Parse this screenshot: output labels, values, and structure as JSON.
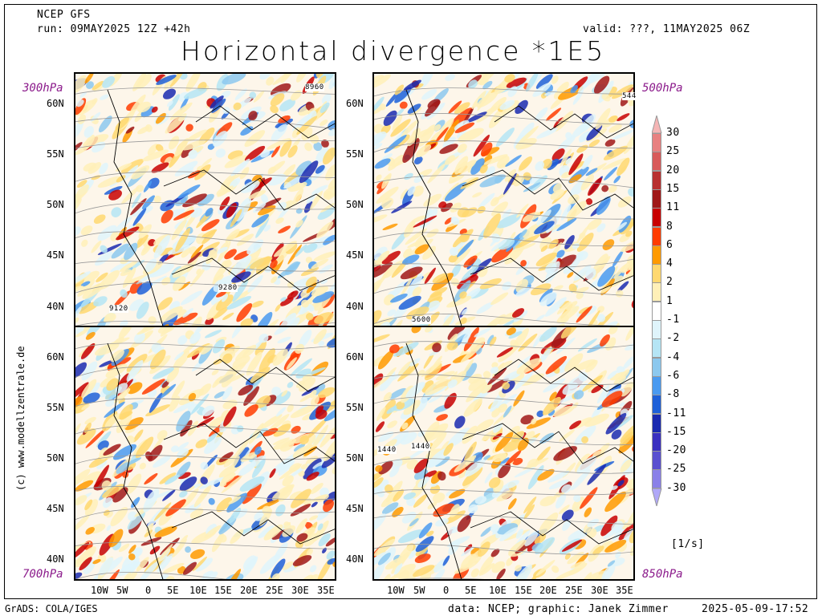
{
  "header": {
    "model": "NCEP GFS",
    "run": "run: 09MAY2025 12Z +42h",
    "valid": "valid: ???, 11MAY2025 06Z",
    "title": "Horizontal divergence *1E5"
  },
  "levels": {
    "top_left": "300hPa",
    "top_right": "500hPa",
    "bottom_left": "700hPa",
    "bottom_right": "850hPa"
  },
  "lat_ticks": [
    "60N",
    "55N",
    "50N",
    "45N",
    "40N"
  ],
  "lon_ticks": [
    "10W",
    "5W",
    "0",
    "5E",
    "10E",
    "15E",
    "20E",
    "25E",
    "30E",
    "35E"
  ],
  "contour_labels": {
    "p300_a": "8960",
    "p300_b": "9280",
    "p300_c": "9120",
    "p500_a": "544",
    "p500_b": "5600",
    "p850_a": "1440",
    "p850_b": "1440"
  },
  "colorbar": {
    "unit": "[1/s]",
    "levels": [
      "30",
      "25",
      "20",
      "15",
      "11",
      "8",
      "6",
      "4",
      "2",
      "1",
      "-1",
      "-2",
      "-4",
      "-6",
      "-8",
      "-11",
      "-15",
      "-20",
      "-25",
      "-30"
    ],
    "colors": [
      "#f5b5b5",
      "#e88080",
      "#d85a5a",
      "#b83030",
      "#a01818",
      "#c80000",
      "#ff3c00",
      "#ff9a00",
      "#ffd870",
      "#fff0b8",
      "#ffffff",
      "#dff4fb",
      "#b5e5f5",
      "#8cc8ee",
      "#4a9af0",
      "#1e60d8",
      "#1a2ab0",
      "#3a30c0",
      "#5a50d0",
      "#8a80e8",
      "#b0a8f8"
    ]
  },
  "footer": {
    "left": "GrADS: COLA/IGES",
    "center": "data: NCEP; graphic: Janek Zimmer",
    "right": "2025-05-09-17:52"
  },
  "credit": "(c) www.modellzentrale.de"
}
